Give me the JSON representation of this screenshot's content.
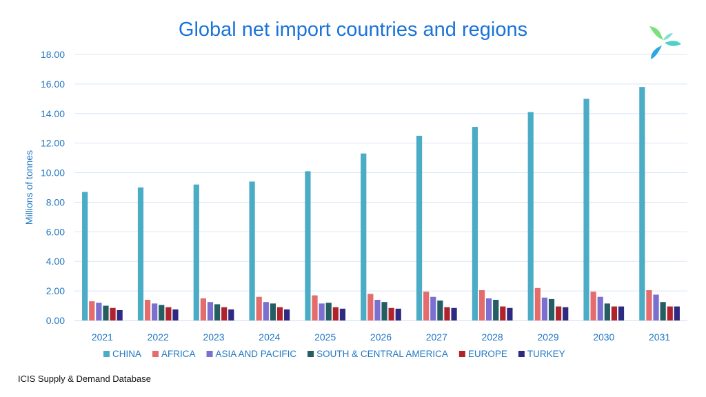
{
  "source_note": "ICIS Supply & Demand Database",
  "logo": {
    "icon": "icis-logo-icon",
    "colors": [
      "#4fd1c5",
      "#2aa9e0",
      "#7be07b"
    ]
  },
  "chart_data": {
    "type": "bar",
    "title": "Global net import countries and regions",
    "xlabel": "",
    "ylabel": "Millions of tonnes",
    "ylim": [
      0,
      18
    ],
    "yticks": [
      "0.00",
      "2.00",
      "4.00",
      "6.00",
      "8.00",
      "10.00",
      "12.00",
      "14.00",
      "16.00",
      "18.00"
    ],
    "grid": true,
    "legend_position": "bottom",
    "categories": [
      "2021",
      "2022",
      "2023",
      "2024",
      "2025",
      "2026",
      "2027",
      "2028",
      "2029",
      "2030",
      "2031"
    ],
    "series": [
      {
        "name": "CHINA",
        "color": "#4bacc6",
        "values": [
          8.7,
          9.0,
          9.2,
          9.4,
          10.1,
          11.3,
          12.5,
          13.1,
          14.1,
          15.0,
          15.8
        ]
      },
      {
        "name": "AFRICA",
        "color": "#e46c6c",
        "values": [
          1.3,
          1.4,
          1.5,
          1.6,
          1.7,
          1.8,
          1.95,
          2.05,
          2.2,
          1.95,
          2.05
        ]
      },
      {
        "name": "ASIA AND PACIFIC",
        "color": "#7b6fcf",
        "values": [
          1.2,
          1.15,
          1.25,
          1.25,
          1.15,
          1.4,
          1.6,
          1.5,
          1.55,
          1.6,
          1.75
        ]
      },
      {
        "name": "SOUTH & CENTRAL AMERICA",
        "color": "#245e63",
        "values": [
          1.0,
          1.05,
          1.1,
          1.15,
          1.2,
          1.25,
          1.35,
          1.4,
          1.45,
          1.15,
          1.25
        ]
      },
      {
        "name": "EUROPE",
        "color": "#b0232d",
        "values": [
          0.85,
          0.9,
          0.9,
          0.9,
          0.9,
          0.85,
          0.9,
          0.95,
          0.95,
          0.95,
          0.95
        ]
      },
      {
        "name": "TURKEY",
        "color": "#2e2a82",
        "values": [
          0.7,
          0.75,
          0.75,
          0.75,
          0.8,
          0.8,
          0.85,
          0.85,
          0.9,
          0.95,
          0.95
        ]
      }
    ]
  }
}
